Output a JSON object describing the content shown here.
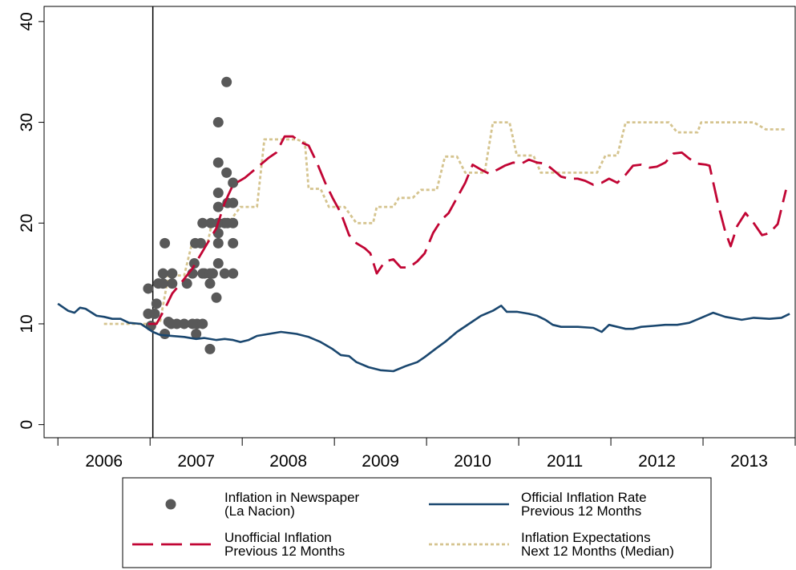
{
  "chart_data": {
    "type": "line",
    "xlim": [
      2005.85,
      2014.0
    ],
    "ylim": [
      -1.3,
      41.5
    ],
    "yticks": [
      0,
      10,
      20,
      30,
      40
    ],
    "xticks": [
      2006,
      2007,
      2008,
      2009,
      2010,
      2011,
      2012,
      2013,
      2014
    ],
    "xtick_labels": [
      {
        "value": 2006.5,
        "label": "2006"
      },
      {
        "value": 2007.5,
        "label": "2007"
      },
      {
        "value": 2008.5,
        "label": "2008"
      },
      {
        "value": 2009.5,
        "label": "2009"
      },
      {
        "value": 2010.5,
        "label": "2010"
      },
      {
        "value": 2011.5,
        "label": "2011"
      },
      {
        "value": 2012.5,
        "label": "2012"
      },
      {
        "value": 2013.5,
        "label": "2013"
      }
    ],
    "vline": 2007.03,
    "grid": false,
    "series": [
      {
        "name": [
          "Inflation in Newspaper",
          "(La Nacion)"
        ],
        "style": "markers",
        "color": "#595959",
        "x": [
          2006.98,
          2006.98,
          2007.01,
          2007.05,
          2007.07,
          2007.09,
          2007.14,
          2007.14,
          2007.16,
          2007.16,
          2007.2,
          2007.23,
          2007.24,
          2007.24,
          2007.29,
          2007.37,
          2007.4,
          2007.46,
          2007.46,
          2007.48,
          2007.49,
          2007.5,
          2007.51,
          2007.55,
          2007.57,
          2007.57,
          2007.57,
          2007.59,
          2007.65,
          2007.65,
          2007.65,
          2007.66,
          2007.68,
          2007.72,
          2007.74,
          2007.74,
          2007.74,
          2007.74,
          2007.74,
          2007.74,
          2007.74,
          2007.74,
          2007.81,
          2007.81,
          2007.83,
          2007.83,
          2007.84,
          2007.84,
          2007.9,
          2007.9,
          2007.9,
          2007.9,
          2007.9
        ],
        "values": [
          13.5,
          11.0,
          9.8,
          11.0,
          12.0,
          14.0,
          14.0,
          15.0,
          9.0,
          18.0,
          10.2,
          10.0,
          15.0,
          14.0,
          10.0,
          10.0,
          14.0,
          10.0,
          15.0,
          16.0,
          18.0,
          9.0,
          10.0,
          18.0,
          15.0,
          20.0,
          10.0,
          15.0,
          7.5,
          14.0,
          15.0,
          20.0,
          15.0,
          12.6,
          16.0,
          18.0,
          19.0,
          20.0,
          21.6,
          23.0,
          26.0,
          30.0,
          15.0,
          20.0,
          25.0,
          34.0,
          20.0,
          22.0,
          15.0,
          18.0,
          20.0,
          22.0,
          24.0
        ]
      },
      {
        "name": [
          "Official Inflation Rate",
          "Previous 12 Months"
        ],
        "style": "solid",
        "color": "#1a476f",
        "x": [
          2006.0,
          2006.11,
          2006.18,
          2006.24,
          2006.3,
          2006.42,
          2006.5,
          2006.59,
          2006.68,
          2006.77,
          2006.9,
          2007.03,
          2007.11,
          2007.37,
          2007.5,
          2007.59,
          2007.72,
          2007.81,
          2007.9,
          2007.98,
          2008.07,
          2008.16,
          2008.29,
          2008.42,
          2008.59,
          2008.72,
          2008.85,
          2008.98,
          2009.07,
          2009.16,
          2009.24,
          2009.37,
          2009.5,
          2009.64,
          2009.77,
          2009.9,
          2009.98,
          2010.11,
          2010.2,
          2010.33,
          2010.46,
          2010.59,
          2010.72,
          2010.81,
          2010.87,
          2010.98,
          2011.11,
          2011.2,
          2011.29,
          2011.37,
          2011.46,
          2011.64,
          2011.81,
          2011.9,
          2011.98,
          2012.07,
          2012.16,
          2012.24,
          2012.33,
          2012.46,
          2012.59,
          2012.72,
          2012.85,
          2012.98,
          2013.11,
          2013.24,
          2013.42,
          2013.55,
          2013.72,
          2013.85,
          2013.94
        ],
        "values": [
          12.0,
          11.3,
          11.1,
          11.6,
          11.5,
          10.8,
          10.7,
          10.5,
          10.5,
          10.1,
          10.0,
          9.2,
          8.9,
          8.7,
          8.5,
          8.6,
          8.4,
          8.5,
          8.4,
          8.2,
          8.4,
          8.8,
          9.0,
          9.2,
          9.0,
          8.7,
          8.2,
          7.5,
          6.9,
          6.8,
          6.2,
          5.7,
          5.4,
          5.3,
          5.8,
          6.2,
          6.7,
          7.6,
          8.2,
          9.2,
          10.0,
          10.8,
          11.3,
          11.8,
          11.2,
          11.2,
          11.0,
          10.8,
          10.4,
          9.9,
          9.7,
          9.7,
          9.6,
          9.2,
          9.9,
          9.7,
          9.5,
          9.5,
          9.7,
          9.8,
          9.9,
          9.9,
          10.1,
          10.6,
          11.1,
          10.7,
          10.4,
          10.6,
          10.5,
          10.6,
          11.0
        ]
      },
      {
        "name": [
          "Unofficial Inflation",
          "Previous 12 Months"
        ],
        "style": "dashed",
        "color": "#c10534",
        "x": [
          2006.98,
          2007.07,
          2007.16,
          2007.24,
          2007.33,
          2007.46,
          2007.59,
          2007.72,
          2007.81,
          2007.9,
          2008.03,
          2008.16,
          2008.29,
          2008.37,
          2008.46,
          2008.55,
          2008.64,
          2008.72,
          2008.81,
          2008.9,
          2008.98,
          2009.07,
          2009.16,
          2009.24,
          2009.33,
          2009.39,
          2009.46,
          2009.55,
          2009.64,
          2009.72,
          2009.81,
          2009.9,
          2009.98,
          2010.07,
          2010.16,
          2010.24,
          2010.33,
          2010.42,
          2010.5,
          2010.59,
          2010.68,
          2010.77,
          2010.85,
          2010.94,
          2011.03,
          2011.11,
          2011.2,
          2011.29,
          2011.37,
          2011.46,
          2011.55,
          2011.64,
          2011.72,
          2011.81,
          2011.9,
          2011.98,
          2012.07,
          2012.16,
          2012.24,
          2012.33,
          2012.42,
          2012.5,
          2012.59,
          2012.68,
          2012.77,
          2012.85,
          2012.94,
          2013.03,
          2013.07,
          2013.16,
          2013.24,
          2013.3,
          2013.37,
          2013.46,
          2013.55,
          2013.64,
          2013.72,
          2013.81,
          2013.9
        ],
        "values": [
          10.0,
          10.0,
          11.5,
          13.0,
          14.0,
          15.5,
          17.5,
          19.5,
          22.0,
          23.8,
          24.5,
          25.5,
          26.5,
          27.0,
          28.6,
          28.6,
          28.0,
          27.7,
          26.0,
          24.0,
          22.5,
          21.0,
          18.8,
          18.0,
          17.5,
          17.0,
          15.0,
          16.2,
          16.4,
          15.6,
          15.6,
          16.2,
          17.0,
          19.0,
          20.3,
          21.0,
          22.5,
          24.0,
          25.8,
          25.3,
          24.9,
          25.3,
          25.7,
          26.0,
          25.9,
          26.3,
          26.0,
          25.9,
          25.3,
          24.6,
          24.4,
          24.4,
          24.2,
          23.8,
          24.0,
          24.4,
          24.0,
          24.8,
          25.7,
          25.8,
          25.5,
          25.6,
          26.0,
          26.9,
          27.0,
          26.4,
          25.9,
          25.8,
          25.7,
          22.0,
          19.2,
          17.7,
          19.7,
          21.0,
          20.0,
          18.8,
          19.0,
          19.9,
          23.3
        ]
      },
      {
        "name": [
          "Inflation Expectations",
          "Next 12 Months (Median)"
        ],
        "style": "dotted",
        "color": "#d5c48f",
        "x": [
          2006.5,
          2006.68,
          2006.9,
          2007.03,
          2007.11,
          2007.2,
          2007.37,
          2007.46,
          2007.63,
          2007.67,
          2007.85,
          2007.98,
          2008.16,
          2008.24,
          2008.59,
          2008.68,
          2008.72,
          2008.85,
          2008.94,
          2009.11,
          2009.24,
          2009.42,
          2009.46,
          2009.64,
          2009.7,
          2009.85,
          2009.94,
          2010.11,
          2010.2,
          2010.33,
          2010.42,
          2010.63,
          2010.72,
          2010.9,
          2010.98,
          2011.16,
          2011.24,
          2011.85,
          2011.94,
          2012.07,
          2012.16,
          2012.63,
          2012.72,
          2012.94,
          2012.98,
          2013.55,
          2013.68,
          2013.9
        ],
        "values": [
          10.0,
          10.0,
          10.0,
          10.0,
          10.3,
          14.8,
          14.8,
          18.2,
          18.2,
          20.0,
          20.0,
          21.6,
          21.6,
          28.3,
          28.3,
          28.0,
          23.4,
          23.4,
          21.6,
          21.6,
          20.0,
          20.0,
          21.6,
          21.6,
          22.5,
          22.5,
          23.3,
          23.3,
          26.6,
          26.6,
          25.0,
          25.0,
          30.0,
          30.0,
          26.7,
          26.7,
          25.0,
          25.0,
          26.7,
          26.7,
          30.0,
          30.0,
          29.0,
          29.0,
          30.0,
          30.0,
          29.3,
          29.3
        ]
      }
    ]
  }
}
